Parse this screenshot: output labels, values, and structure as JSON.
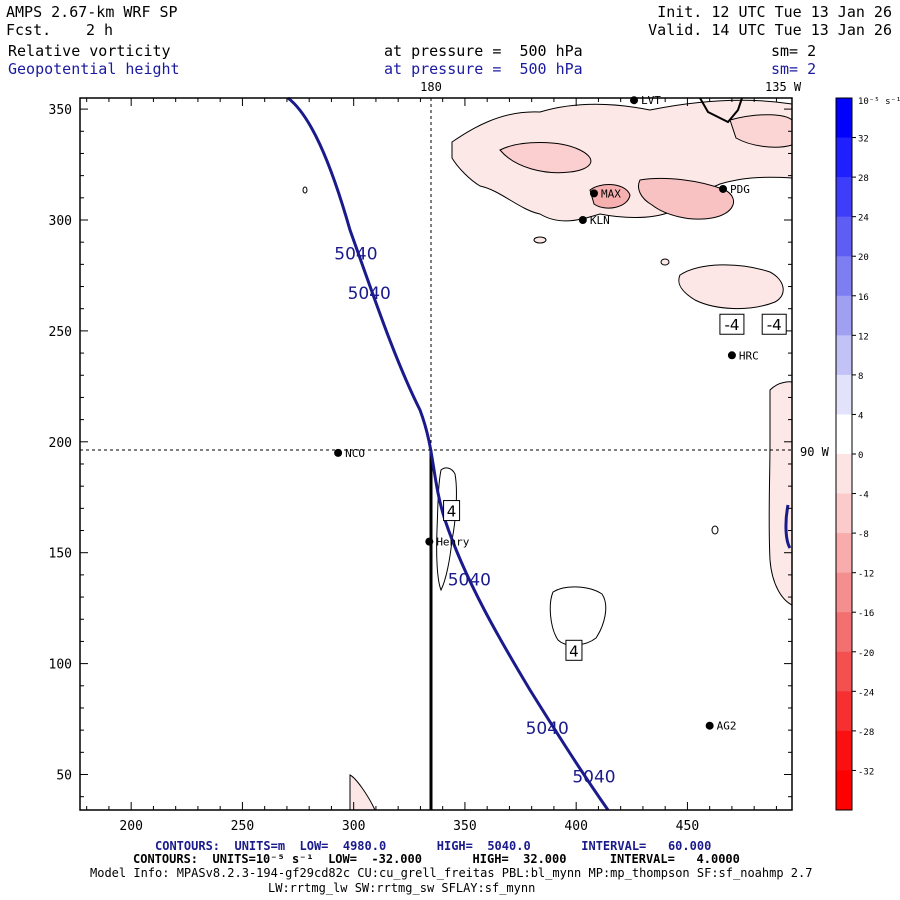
{
  "header": {
    "model_title": "AMPS 2.67-km WRF SP",
    "fcst_label": "Fcst.",
    "fcst_value": "2 h",
    "init": "Init. 12 UTC Tue 13 Jan 26",
    "valid": "Valid. 14 UTC Tue 13 Jan 26",
    "field1_name": "Relative vorticity",
    "field1_level": "at pressure =  500 hPa",
    "field1_sm": "sm= 2",
    "field2_name": "Geopotential height",
    "field2_level": "at pressure =  500 hPa",
    "field2_sm": "sm= 2",
    "lon_180": "180",
    "lon_135w": "135 W",
    "lon_90w": "90 W"
  },
  "axes": {
    "x_ticks": [
      200,
      250,
      300,
      350,
      400,
      450
    ],
    "y_ticks": [
      50,
      100,
      150,
      200,
      250,
      300,
      350
    ],
    "x_range": [
      177,
      497
    ],
    "y_range": [
      34,
      355
    ]
  },
  "colorbar": {
    "unit_label": "10⁻⁵ s⁻¹",
    "tick_labels": [
      "32",
      "28",
      "24",
      "20",
      "16",
      "12",
      "8",
      "4",
      "0",
      "-4",
      "-8",
      "-12",
      "-16",
      "-20",
      "-24",
      "-28",
      "-32"
    ],
    "bands": [
      "#0000ff",
      "#1f1fff",
      "#3e3efa",
      "#5e5ef5",
      "#7e7ef3",
      "#a0a0f3",
      "#c2c2f7",
      "#e2e2fb",
      "#ffffff",
      "#fde4e4",
      "#fbcaca",
      "#f8acac",
      "#f58e8e",
      "#f37070",
      "#f45050",
      "#f63030",
      "#fa1010",
      "#ff0000"
    ]
  },
  "stations": [
    {
      "name": "NCO",
      "x": 293,
      "y": 195
    },
    {
      "name": "Henry",
      "x": 334,
      "y": 155
    },
    {
      "name": "KLN",
      "x": 403,
      "y": 300
    },
    {
      "name": "MAX",
      "x": 408,
      "y": 312
    },
    {
      "name": "PDG",
      "x": 466,
      "y": 314
    },
    {
      "name": "LVT",
      "x": 426,
      "y": 354
    },
    {
      "name": "HRC",
      "x": 470,
      "y": 239
    },
    {
      "name": "AG2",
      "x": 460,
      "y": 72
    }
  ],
  "height_labels": [
    {
      "text": "5040",
      "x": 301,
      "y": 285
    },
    {
      "text": "5040",
      "x": 307,
      "y": 267
    },
    {
      "text": "5040",
      "x": 352,
      "y": 138
    },
    {
      "text": "5040",
      "x": 387,
      "y": 71
    },
    {
      "text": "5040",
      "x": 408,
      "y": 49
    }
  ],
  "vort_labels": [
    {
      "text": "4",
      "x": 344,
      "y": 169
    },
    {
      "text": "4",
      "x": 399,
      "y": 106
    },
    {
      "text": "-4",
      "x": 470,
      "y": 253
    },
    {
      "text": "-4",
      "x": 489,
      "y": 253
    }
  ],
  "footer": {
    "contours_height": "CONTOURS:  UNITS=m  LOW=  4980.0       HIGH=  5040.0       INTERVAL=   60.000",
    "contours_vort": "CONTOURS:  UNITS=10⁻⁵ s⁻¹  LOW=  -32.000       HIGH=  32.000      INTERVAL=   4.0000",
    "model_info": "Model Info: MPASv8.2.3-194-gf29cd82c CU:cu_grell_freitas PBL:bl_mynn MP:mp_thompson SF:sf_noahmp 2.7",
    "physics": "LW:rrtmg_lw SW:rrtmg_sw SFLAY:sf_mynn"
  }
}
